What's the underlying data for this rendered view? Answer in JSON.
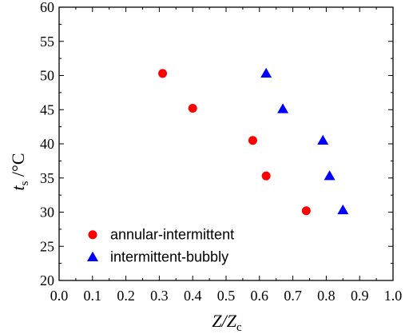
{
  "chart_data": {
    "type": "scatter",
    "xlim": [
      0.0,
      1.0
    ],
    "ylim": [
      20,
      60
    ],
    "x_ticks": [
      "0.0",
      "0.1",
      "0.2",
      "0.3",
      "0.4",
      "0.5",
      "0.6",
      "0.7",
      "0.8",
      "0.9",
      "1.0"
    ],
    "y_ticks": [
      "20",
      "25",
      "30",
      "35",
      "40",
      "45",
      "50",
      "55",
      "60"
    ],
    "xlabel": {
      "main": "Z/Z",
      "sub": "c"
    },
    "ylabel": {
      "main": "t",
      "sub": "s",
      "unit": " /°C"
    },
    "grid": false,
    "legend_position": "bottom-left",
    "series": [
      {
        "name": "annular-intermittent",
        "marker": "circle",
        "color": "#ff0000",
        "points": [
          {
            "x": 0.31,
            "y": 50.3
          },
          {
            "x": 0.4,
            "y": 45.2
          },
          {
            "x": 0.58,
            "y": 40.5
          },
          {
            "x": 0.62,
            "y": 35.3
          },
          {
            "x": 0.74,
            "y": 30.2
          }
        ]
      },
      {
        "name": "intermittent-bubbly",
        "marker": "triangle",
        "color": "#0000ff",
        "points": [
          {
            "x": 0.62,
            "y": 50.3
          },
          {
            "x": 0.67,
            "y": 45.1
          },
          {
            "x": 0.79,
            "y": 40.5
          },
          {
            "x": 0.81,
            "y": 35.3
          },
          {
            "x": 0.85,
            "y": 30.3
          }
        ]
      }
    ]
  }
}
